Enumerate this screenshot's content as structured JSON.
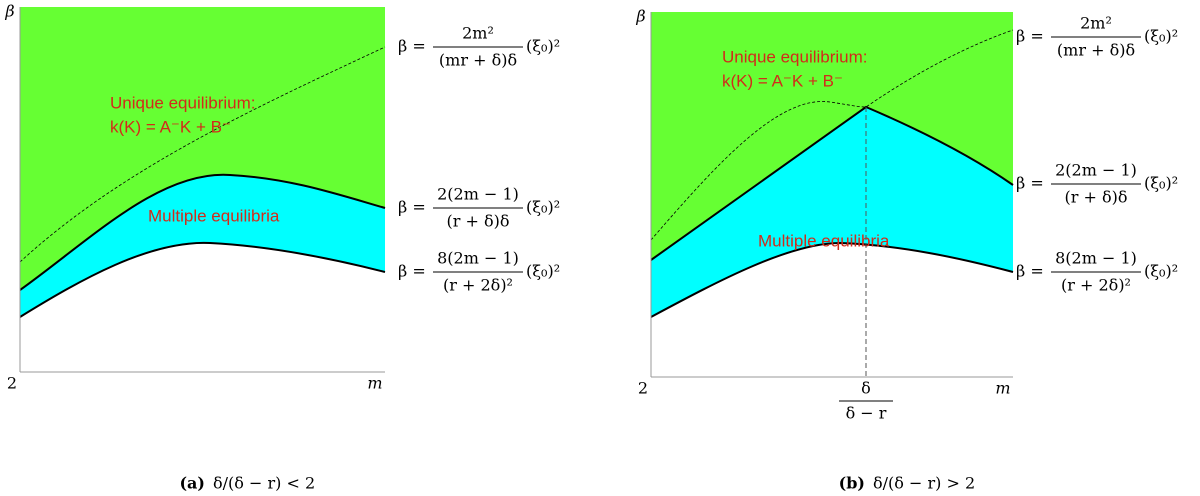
{
  "panels": [
    {
      "y_axis_label": "β",
      "x_axis_label": "m",
      "x_start_label": "2",
      "unique_label": "Unique equilibrium:",
      "unique_formula": "k(K) = A⁻K + B⁻",
      "multiple_label": "Multiple equilibria",
      "curves": [
        {
          "lhs": "β =",
          "numerator": "2m²",
          "denominator": "(mr + δ)δ",
          "factor": "(ξ₀)²"
        },
        {
          "lhs": "β =",
          "numerator": "2(2m − 1)",
          "denominator": "(r + δ)δ",
          "factor": "(ξ₀)²"
        },
        {
          "lhs": "β =",
          "numerator": "8(2m − 1)",
          "denominator": "(r + 2δ)²",
          "factor": "(ξ₀)²"
        }
      ],
      "caption_tag": "(a)",
      "caption": "δ/(δ − r) < 2"
    },
    {
      "y_axis_label": "β",
      "x_axis_label": "m",
      "x_start_label": "2",
      "unique_label": "Unique equilibrium:",
      "unique_formula": "k(K) = A⁻K + B⁻",
      "multiple_label": "Multiple equilibria",
      "curves": [
        {
          "lhs": "β =",
          "numerator": "2m²",
          "denominator": "(mr + δ)δ",
          "factor": "(ξ₀)²"
        },
        {
          "lhs": "β =",
          "numerator": "2(2m − 1)",
          "denominator": "(r + δ)δ",
          "factor": "(ξ₀)²"
        },
        {
          "lhs": "β =",
          "numerator": "8(2m − 1)",
          "denominator": "(r + 2δ)²",
          "factor": "(ξ₀)²"
        }
      ],
      "x_mark_label": {
        "numerator": "δ",
        "denominator": "δ − r"
      },
      "caption_tag": "(b)",
      "caption": "δ/(δ − r) > 2"
    }
  ]
}
